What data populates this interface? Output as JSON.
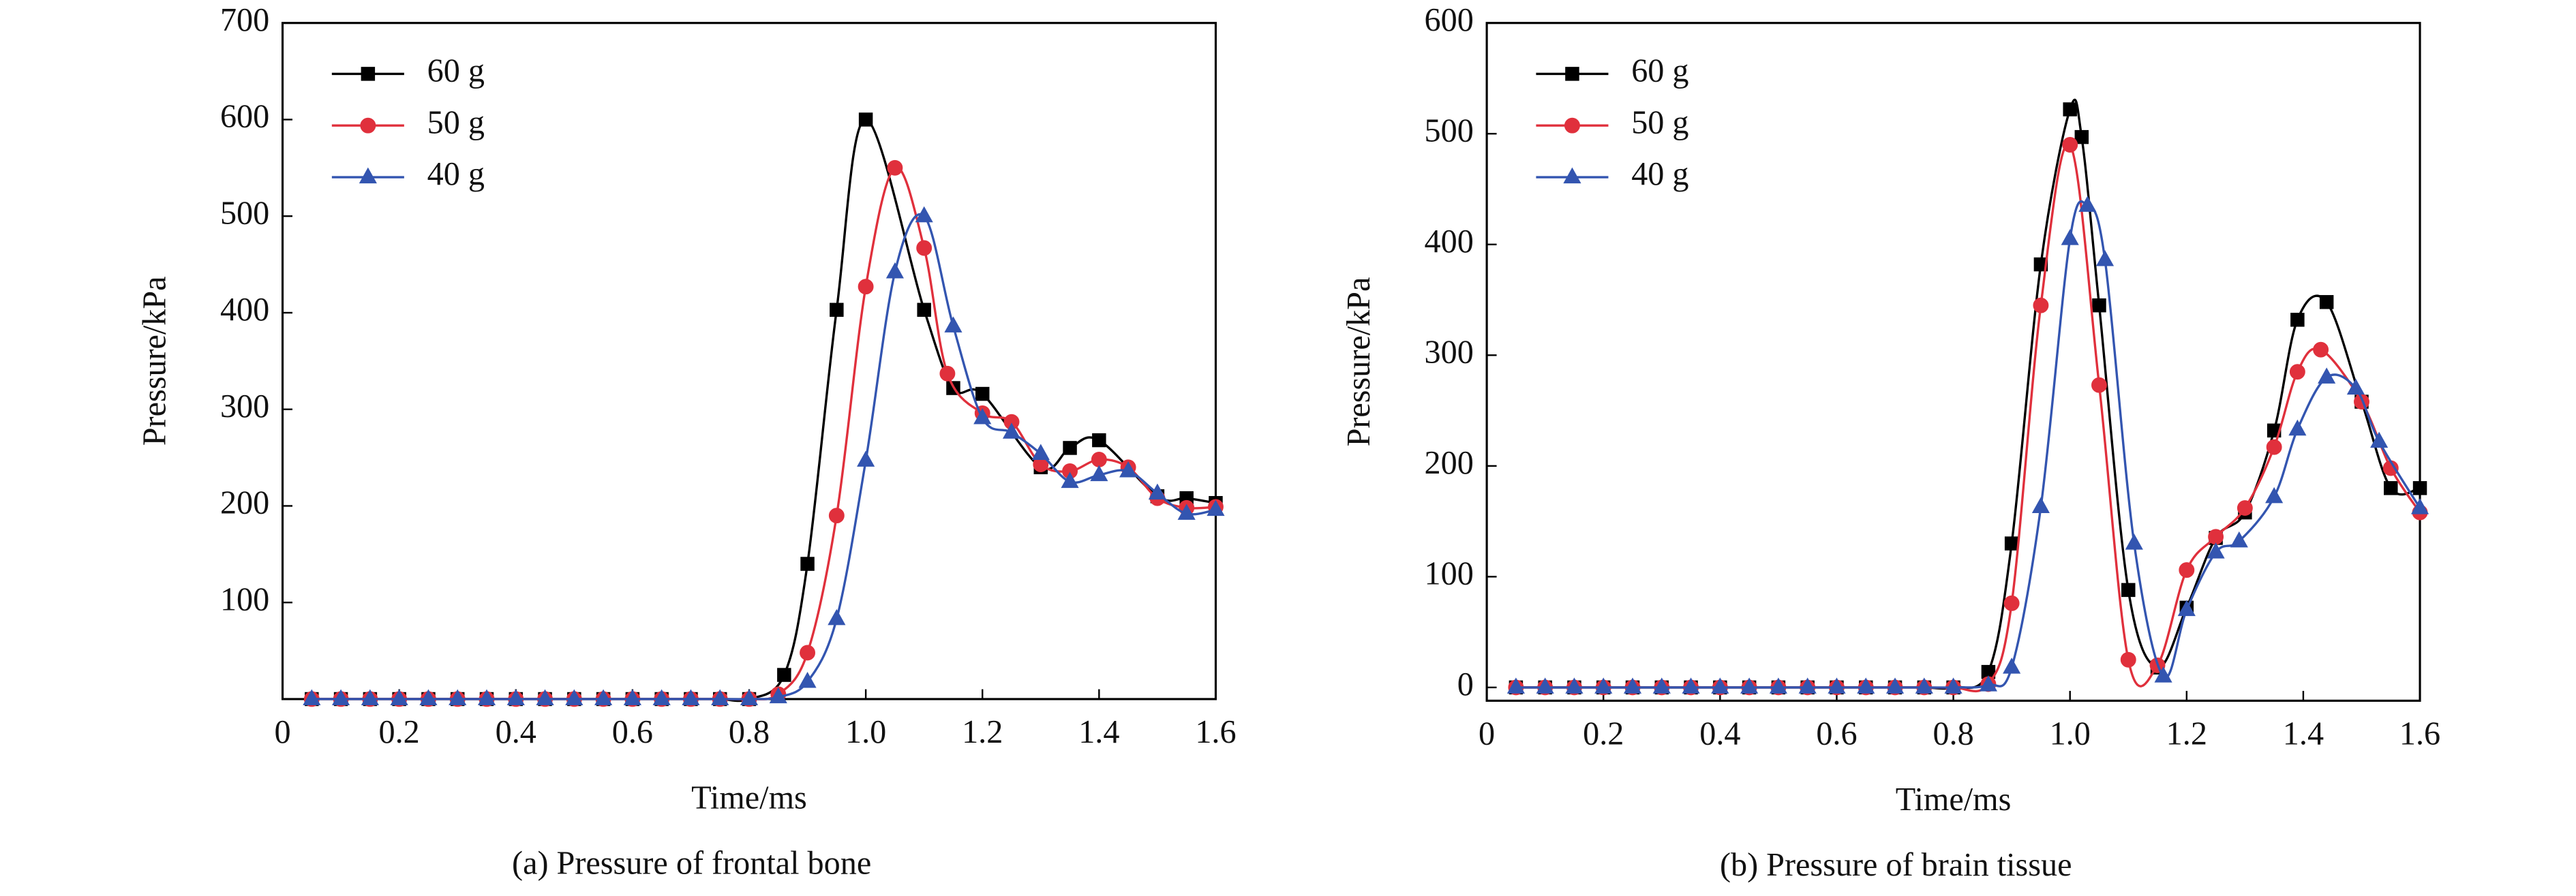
{
  "chart_data": [
    {
      "type": "line",
      "title": "(a) Pressure of frontal bone",
      "xlabel": "Time/ms",
      "ylabel": "Pressure/kPa",
      "xlim": [
        0,
        1.6
      ],
      "ylim": [
        0,
        700
      ],
      "xticks": [
        0,
        0.2,
        0.4,
        0.6,
        0.8,
        {
          "value": 1,
          "label": "1.0"
        },
        1.2,
        1.4,
        1.6
      ],
      "yticks": [
        100,
        200,
        300,
        400,
        500,
        600,
        700
      ],
      "legend": "upper left",
      "series": [
        {
          "name": "60 g",
          "color": "#000000",
          "marker": "square",
          "x": [
            0.05,
            0.1,
            0.15,
            0.2,
            0.25,
            0.3,
            0.35,
            0.4,
            0.45,
            0.5,
            0.55,
            0.6,
            0.65,
            0.7,
            0.75,
            0.8,
            0.86,
            0.9,
            0.95,
            1.0,
            1.1,
            1.15,
            1.2,
            1.3,
            1.35,
            1.4,
            1.5,
            1.55,
            1.6
          ],
          "values": [
            0,
            0,
            0,
            0,
            0,
            0,
            0,
            0,
            0,
            0,
            0,
            0,
            0,
            0,
            0,
            0,
            25,
            140,
            403,
            600,
            403,
            322,
            316,
            240,
            260,
            268,
            210,
            208,
            203
          ]
        },
        {
          "name": "50 g",
          "color": "#e0303c",
          "marker": "circle",
          "x": [
            0.05,
            0.1,
            0.15,
            0.2,
            0.25,
            0.3,
            0.35,
            0.4,
            0.45,
            0.5,
            0.55,
            0.6,
            0.65,
            0.7,
            0.75,
            0.8,
            0.85,
            0.9,
            0.95,
            1.0,
            1.05,
            1.1,
            1.14,
            1.2,
            1.25,
            1.3,
            1.35,
            1.4,
            1.45,
            1.5,
            1.55,
            1.6
          ],
          "values": [
            0,
            0,
            0,
            0,
            0,
            0,
            0,
            0,
            0,
            0,
            0,
            0,
            0,
            0,
            0,
            0,
            5,
            48,
            190,
            427,
            550,
            467,
            337,
            296,
            287,
            243,
            236,
            248,
            240,
            208,
            198,
            199
          ]
        },
        {
          "name": "40 g",
          "color": "#3355b0",
          "marker": "triangle",
          "x": [
            0.05,
            0.1,
            0.15,
            0.2,
            0.25,
            0.3,
            0.35,
            0.4,
            0.45,
            0.5,
            0.55,
            0.6,
            0.65,
            0.7,
            0.75,
            0.8,
            0.85,
            0.9,
            0.95,
            1.0,
            1.05,
            1.1,
            1.15,
            1.2,
            1.25,
            1.3,
            1.35,
            1.4,
            1.45,
            1.5,
            1.55,
            1.6
          ],
          "values": [
            0,
            0,
            0,
            0,
            0,
            0,
            0,
            0,
            0,
            0,
            0,
            0,
            0,
            0,
            0,
            0,
            2,
            18,
            83,
            247,
            442,
            500,
            386,
            291,
            276,
            254,
            225,
            232,
            236,
            213,
            192,
            196
          ]
        }
      ]
    },
    {
      "type": "line",
      "title": "(b) Pressure of brain tissue",
      "xlabel": "Time/ms",
      "ylabel": "Pressure/kPa",
      "xlim": [
        0,
        1.6
      ],
      "ylim": [
        -12,
        600
      ],
      "xticks": [
        0,
        0.2,
        0.4,
        0.6,
        0.8,
        {
          "value": 1,
          "label": "1.0"
        },
        1.2,
        1.4,
        1.6
      ],
      "yticks": [
        0,
        100,
        200,
        300,
        400,
        500,
        600
      ],
      "legend": "upper left",
      "series": [
        {
          "name": "60 g",
          "color": "#000000",
          "marker": "square",
          "x": [
            0.05,
            0.1,
            0.15,
            0.2,
            0.25,
            0.3,
            0.35,
            0.4,
            0.45,
            0.5,
            0.55,
            0.6,
            0.65,
            0.7,
            0.75,
            0.8,
            0.86,
            0.9,
            0.95,
            1.0,
            1.02,
            1.05,
            1.1,
            1.15,
            1.2,
            1.25,
            1.3,
            1.35,
            1.39,
            1.44,
            1.5,
            1.55,
            1.6
          ],
          "values": [
            0,
            0,
            0,
            0,
            0,
            0,
            0,
            0,
            0,
            0,
            0,
            0,
            0,
            0,
            0,
            0,
            14,
            130,
            382,
            522,
            497,
            345,
            88,
            18,
            72,
            135,
            158,
            232,
            332,
            348,
            258,
            180,
            180
          ]
        },
        {
          "name": "50 g",
          "color": "#e0303c",
          "marker": "circle",
          "x": [
            0.05,
            0.1,
            0.15,
            0.2,
            0.25,
            0.3,
            0.35,
            0.4,
            0.45,
            0.5,
            0.55,
            0.6,
            0.65,
            0.7,
            0.75,
            0.8,
            0.86,
            0.9,
            0.95,
            1.0,
            1.05,
            1.1,
            1.15,
            1.2,
            1.25,
            1.3,
            1.35,
            1.39,
            1.43,
            1.5,
            1.55,
            1.6
          ],
          "values": [
            0,
            0,
            0,
            0,
            0,
            0,
            0,
            0,
            0,
            0,
            0,
            0,
            0,
            0,
            0,
            0,
            3,
            76,
            345,
            490,
            273,
            25,
            20,
            106,
            136,
            162,
            217,
            285,
            305,
            258,
            198,
            158
          ]
        },
        {
          "name": "40 g",
          "color": "#3355b0",
          "marker": "triangle",
          "x": [
            0.05,
            0.1,
            0.15,
            0.2,
            0.25,
            0.3,
            0.35,
            0.4,
            0.45,
            0.5,
            0.55,
            0.6,
            0.65,
            0.7,
            0.75,
            0.8,
            0.86,
            0.9,
            0.95,
            1.0,
            1.03,
            1.06,
            1.11,
            1.16,
            1.2,
            1.25,
            1.29,
            1.35,
            1.39,
            1.44,
            1.49,
            1.53,
            1.6
          ],
          "values": [
            0,
            0,
            0,
            0,
            0,
            0,
            0,
            0,
            0,
            0,
            0,
            0,
            0,
            0,
            0,
            0,
            2,
            18,
            163,
            405,
            435,
            386,
            130,
            10,
            70,
            122,
            132,
            172,
            233,
            280,
            270,
            222,
            162
          ]
        }
      ]
    }
  ]
}
